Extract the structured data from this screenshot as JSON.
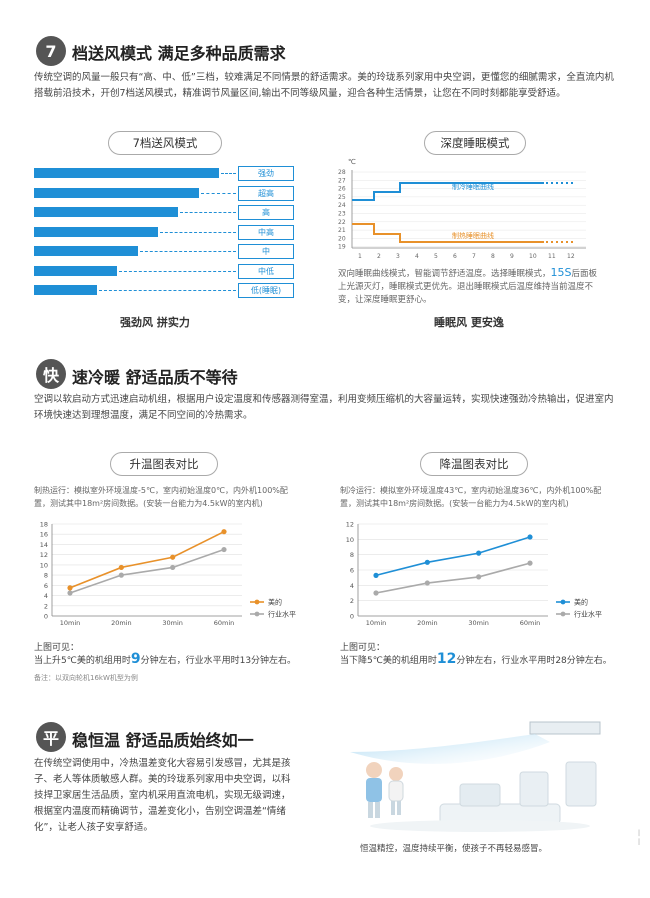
{
  "section1": {
    "badge": "7",
    "title": "档送风模式   满足多种品质需求",
    "paragraph": "传统空调的风量一般只有“高、中、低”三档，较难满足不同情景的舒适需求。美的玲珑系列家用中央空调，更懂您的细腻需求，全直流内机搭载前沿技术，开创7档送风模式，精准调节风量区间,输出不同等级风量，迎合各种生活情景，让您在不同时刻都能享受舒适。",
    "left_pill": "7档送风模式",
    "right_pill": "深度睡眠模式",
    "fan_levels": [
      {
        "label": "强劲",
        "value": 1.0
      },
      {
        "label": "超高",
        "value": 0.89
      },
      {
        "label": "高",
        "value": 0.78
      },
      {
        "label": "中高",
        "value": 0.67
      },
      {
        "label": "中",
        "value": 0.56
      },
      {
        "label": "中低",
        "value": 0.45
      },
      {
        "label": "低(睡眠)",
        "value": 0.34
      }
    ],
    "left_caption": "强劲风  拼实力",
    "sleep_chart": {
      "unit": "℃",
      "y_ticks": [
        "28",
        "27",
        "26",
        "25",
        "24",
        "23",
        "22",
        "21",
        "20",
        "19"
      ],
      "x_ticks": [
        "1",
        "2",
        "3",
        "4",
        "5",
        "6",
        "7",
        "8",
        "9",
        "10",
        "11",
        "12"
      ],
      "cool_label": "制冷睡眠曲线",
      "heat_label": "制热睡眠曲线"
    },
    "sleep_desc_a": "双向睡眠曲线模式，智能调节舒适温度。选择睡眠模式，",
    "sleep_desc_big": "15S",
    "sleep_desc_b": "后面板上光源灭灯，睡眠模式更优先。退出睡眠模式后温度维持当前温度不变，让深度睡眠更舒心。",
    "right_caption": "睡眠风  更安逸"
  },
  "section2": {
    "badge": "快",
    "title": "速冷暖   舒适品质不等待",
    "paragraph": "空调以软启动方式迅速启动机组，根据用户设定温度和传感器测得室温，利用变频压缩机的大容量运转，实现快速强劲冷热输出，促进室内环境快速达到理想温度，满足不同空间的冷热需求。",
    "heat_pill": "升温图表对比",
    "cool_pill": "降温图表对比",
    "heat_cond": "制热运行：模拟室外环境温度-5℃，室内初始温度0℃，内外机100%配置，测试其中18m²房间数据。(安装一台能力为4.5kW的室内机)",
    "cool_cond": "制冷运行：模拟室外环境温度43℃，室内初始温度36℃，内外机100%配置，测试其中18m²房间数据。(安装一台能力为4.5kW的室内机)",
    "heat_visible_a": "上图可见：",
    "heat_visible_b1": "当上升5℃美的机组用时",
    "heat_visible_big": "9",
    "heat_visible_b2": "分钟左右，行业水平用时13分钟左右。",
    "cool_visible_a": "上图可见：",
    "cool_visible_b1": "当下降5℃美的机组用时",
    "cool_visible_big": "12",
    "cool_visible_b2": "分钟左右，行业水平用时28分钟左右。",
    "note": "备注：以双向轮机16kW机型为例"
  },
  "chart_data": [
    {
      "type": "line",
      "categories": [
        "10min",
        "20min",
        "30min",
        "60min"
      ],
      "ylim": [
        0,
        18
      ],
      "y_ticks": [
        "18",
        "16",
        "14",
        "12",
        "10",
        "8",
        "6",
        "4",
        "2",
        "0"
      ],
      "series": [
        {
          "name": "美的",
          "values": [
            5.5,
            9.5,
            11.5,
            16.5
          ],
          "color": "#e8912a"
        },
        {
          "name": "行业水平",
          "values": [
            4.5,
            8,
            9.5,
            13
          ],
          "color": "#aaaaaa"
        }
      ]
    },
    {
      "type": "line",
      "categories": [
        "10min",
        "20min",
        "30min",
        "60min"
      ],
      "ylim": [
        0,
        12
      ],
      "y_ticks": [
        "12",
        "10",
        "8",
        "6",
        "4",
        "2",
        "0"
      ],
      "series": [
        {
          "name": "美的",
          "values": [
            5.3,
            7,
            8.2,
            10.3
          ],
          "color": "#1f8fd6"
        },
        {
          "name": "行业水平",
          "values": [
            3,
            4.3,
            5.1,
            6.9
          ],
          "color": "#aaaaaa"
        }
      ]
    }
  ],
  "section3": {
    "badge": "平",
    "title": "稳恒温   舒适品质始终如一",
    "paragraph": "在传统空调使用中，冷热温差变化大容易引发感冒，尤其是孩子、老人等体质敏感人群。美的玲珑系列家用中央空调，以科技捍卫家居生活品质，室内机采用直流电机，实现无级调速，根据室内温度而精确调节，温差变化小，告别空调温差“情绪化”，让老人孩子安享舒适。",
    "photo_caption": "恒温精控，温度持续平衡，使孩子不再轻易感冒。"
  },
  "colors": {
    "accent": "#1f8fd6",
    "orange": "#e8912a",
    "grey": "#aaaaaa"
  }
}
